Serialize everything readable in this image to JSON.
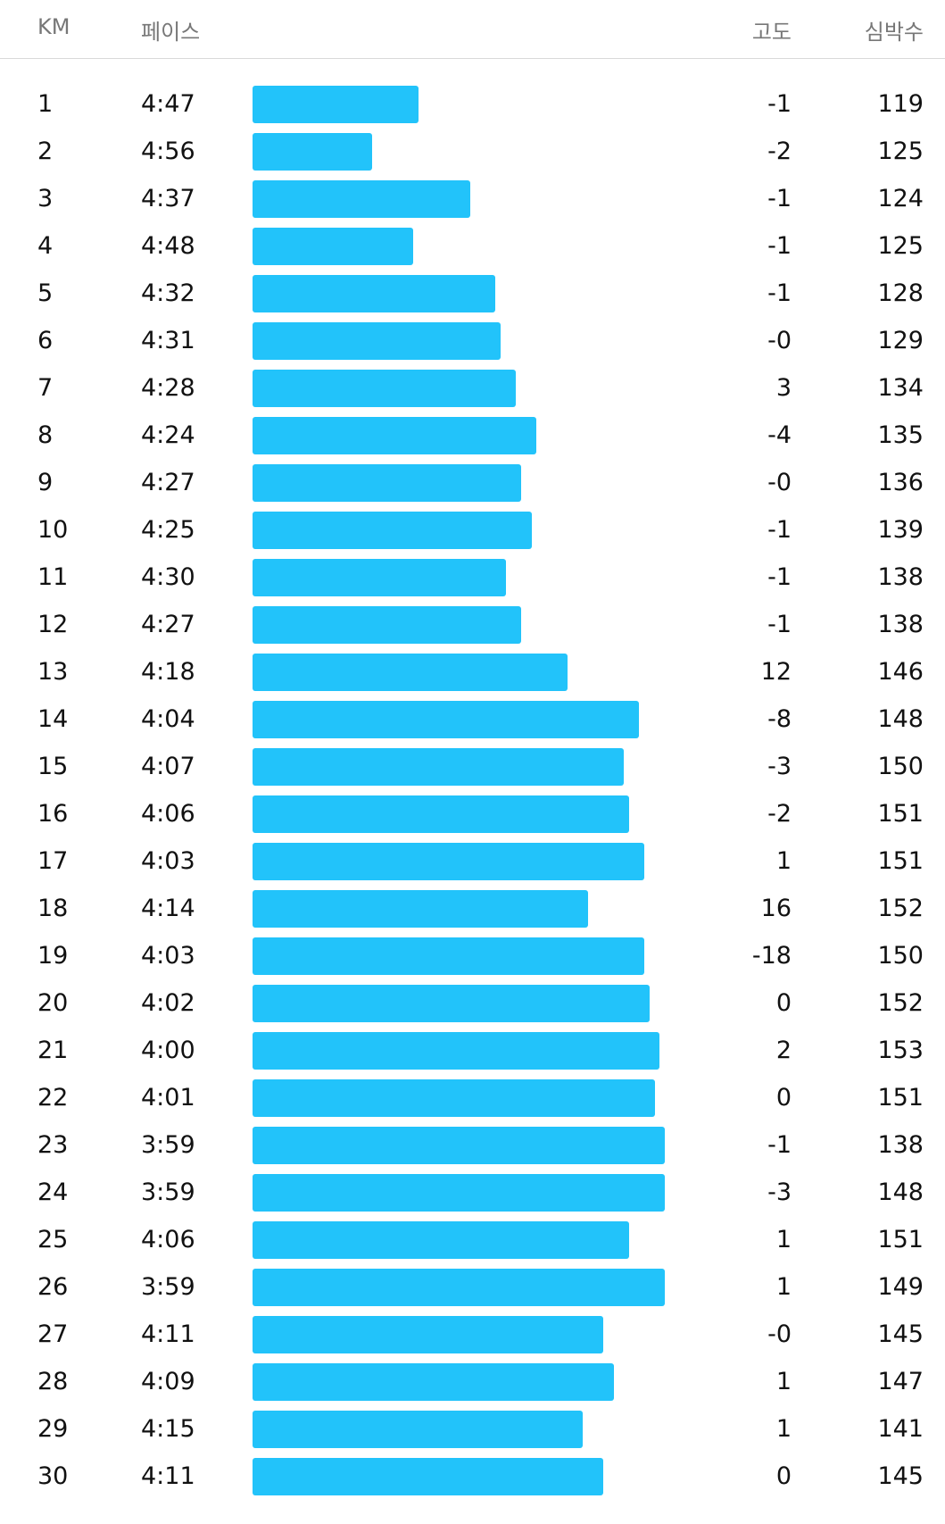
{
  "header": {
    "km_label": "KM",
    "pace_label": "페이스",
    "elevation_label": "고도",
    "heart_rate_label": "심박수"
  },
  "bar_color": "#22c3fa",
  "splits": [
    {
      "km": "1",
      "pace": "4:47",
      "pace_seconds": 287,
      "elevation": "-1",
      "heart_rate": "119"
    },
    {
      "km": "2",
      "pace": "4:56",
      "pace_seconds": 296,
      "elevation": "-2",
      "heart_rate": "125"
    },
    {
      "km": "3",
      "pace": "4:37",
      "pace_seconds": 277,
      "elevation": "-1",
      "heart_rate": "124"
    },
    {
      "km": "4",
      "pace": "4:48",
      "pace_seconds": 288,
      "elevation": "-1",
      "heart_rate": "125"
    },
    {
      "km": "5",
      "pace": "4:32",
      "pace_seconds": 272,
      "elevation": "-1",
      "heart_rate": "128"
    },
    {
      "km": "6",
      "pace": "4:31",
      "pace_seconds": 271,
      "elevation": "-0",
      "heart_rate": "129"
    },
    {
      "km": "7",
      "pace": "4:28",
      "pace_seconds": 268,
      "elevation": "3",
      "heart_rate": "134"
    },
    {
      "km": "8",
      "pace": "4:24",
      "pace_seconds": 264,
      "elevation": "-4",
      "heart_rate": "135"
    },
    {
      "km": "9",
      "pace": "4:27",
      "pace_seconds": 267,
      "elevation": "-0",
      "heart_rate": "136"
    },
    {
      "km": "10",
      "pace": "4:25",
      "pace_seconds": 265,
      "elevation": "-1",
      "heart_rate": "139"
    },
    {
      "km": "11",
      "pace": "4:30",
      "pace_seconds": 270,
      "elevation": "-1",
      "heart_rate": "138"
    },
    {
      "km": "12",
      "pace": "4:27",
      "pace_seconds": 267,
      "elevation": "-1",
      "heart_rate": "138"
    },
    {
      "km": "13",
      "pace": "4:18",
      "pace_seconds": 258,
      "elevation": "12",
      "heart_rate": "146"
    },
    {
      "km": "14",
      "pace": "4:04",
      "pace_seconds": 244,
      "elevation": "-8",
      "heart_rate": "148"
    },
    {
      "km": "15",
      "pace": "4:07",
      "pace_seconds": 247,
      "elevation": "-3",
      "heart_rate": "150"
    },
    {
      "km": "16",
      "pace": "4:06",
      "pace_seconds": 246,
      "elevation": "-2",
      "heart_rate": "151"
    },
    {
      "km": "17",
      "pace": "4:03",
      "pace_seconds": 243,
      "elevation": "1",
      "heart_rate": "151"
    },
    {
      "km": "18",
      "pace": "4:14",
      "pace_seconds": 254,
      "elevation": "16",
      "heart_rate": "152"
    },
    {
      "km": "19",
      "pace": "4:03",
      "pace_seconds": 243,
      "elevation": "-18",
      "heart_rate": "150"
    },
    {
      "km": "20",
      "pace": "4:02",
      "pace_seconds": 242,
      "elevation": "0",
      "heart_rate": "152"
    },
    {
      "km": "21",
      "pace": "4:00",
      "pace_seconds": 240,
      "elevation": "2",
      "heart_rate": "153"
    },
    {
      "km": "22",
      "pace": "4:01",
      "pace_seconds": 241,
      "elevation": "0",
      "heart_rate": "151"
    },
    {
      "km": "23",
      "pace": "3:59",
      "pace_seconds": 239,
      "elevation": "-1",
      "heart_rate": "138"
    },
    {
      "km": "24",
      "pace": "3:59",
      "pace_seconds": 239,
      "elevation": "-3",
      "heart_rate": "148"
    },
    {
      "km": "25",
      "pace": "4:06",
      "pace_seconds": 246,
      "elevation": "1",
      "heart_rate": "151"
    },
    {
      "km": "26",
      "pace": "3:59",
      "pace_seconds": 239,
      "elevation": "1",
      "heart_rate": "149"
    },
    {
      "km": "27",
      "pace": "4:11",
      "pace_seconds": 251,
      "elevation": "-0",
      "heart_rate": "145"
    },
    {
      "km": "28",
      "pace": "4:09",
      "pace_seconds": 249,
      "elevation": "1",
      "heart_rate": "147"
    },
    {
      "km": "29",
      "pace": "4:15",
      "pace_seconds": 255,
      "elevation": "1",
      "heart_rate": "141"
    },
    {
      "km": "30",
      "pace": "4:11",
      "pace_seconds": 251,
      "elevation": "0",
      "heart_rate": "145"
    }
  ]
}
